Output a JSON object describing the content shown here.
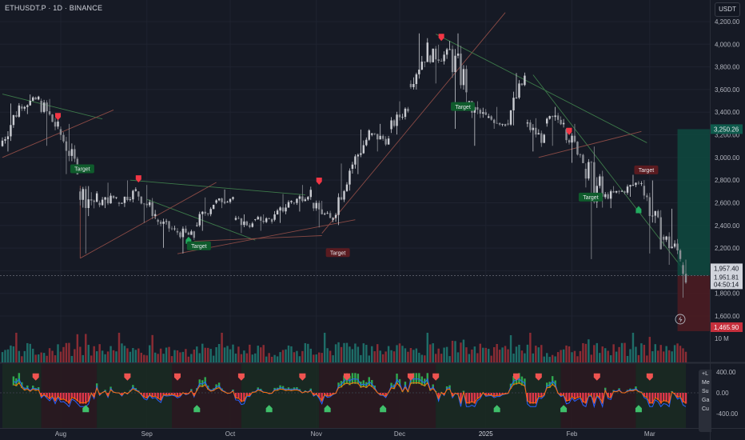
{
  "header": {
    "symbol": "ETHUSDT.P · 1D · BINANCE",
    "currency_button": "USDT"
  },
  "colors": {
    "background": "#161a25",
    "up_candle": "#c9cbd1",
    "down_candle": "#8a8d94",
    "bull_green": "#089981",
    "bear_red": "#f23645",
    "target_red": "#5a1b20",
    "target_green": "#0f5b2c",
    "trendline_green": "#3d7a4a",
    "trendline_red": "#8a4a45",
    "position_profit": "#0e4a40",
    "position_loss": "#4a1c22"
  },
  "price_axis": {
    "labels": [
      "4,200.00",
      "4,000.00",
      "3,800.00",
      "3,600.00",
      "3,400.00",
      "3,200.00",
      "3,000.00",
      "2,800.00",
      "2,600.00",
      "2,400.00",
      "2,200.00",
      "2,000.00",
      "1,800.00",
      "1,600.00"
    ],
    "target_price_tag": "3,250.26",
    "entry_price_tag": "1,957.40",
    "last_price_tag": "1,951.81",
    "countdown_tag": "04:50:14",
    "stop_price_tag": "1,465.90"
  },
  "volume_axis": {
    "label": "10 M"
  },
  "oscillator_axis": {
    "labels": [
      "400.00",
      "0.00",
      "-400.00"
    ]
  },
  "time_axis": {
    "labels": [
      "Aug",
      "Sep",
      "Oct",
      "Nov",
      "Dec",
      "2025",
      "Feb",
      "Mar"
    ]
  },
  "target_labels": [
    "Target",
    "Target",
    "Target",
    "Target",
    "Target",
    "Target"
  ],
  "side_panel": [
    "+L",
    "Me",
    "Su",
    "Ga",
    "Cu"
  ],
  "chart_data": {
    "type": "candlestick",
    "title": "ETHUSDT.P · 1D · BINANCE",
    "x_range": [
      "2024-07-11",
      "2025-03-14"
    ],
    "ylim": [
      1465.9,
      4280
    ],
    "last_price": 1951.81,
    "series": [
      {
        "name": "ETHUSDT.P",
        "ohlc_weekly": [
          {
            "date": "2024-07-11",
            "open": 3100,
            "close": 3450,
            "high": 3480,
            "low": 3050
          },
          {
            "date": "2024-07-18",
            "open": 3450,
            "close": 3520,
            "high": 3560,
            "low": 3380
          },
          {
            "date": "2024-07-25",
            "open": 3500,
            "close": 3250,
            "high": 3520,
            "low": 3100
          },
          {
            "date": "2024-08-01",
            "open": 3250,
            "close": 2900,
            "high": 3300,
            "low": 2850
          },
          {
            "date": "2024-08-08",
            "open": 2700,
            "close": 2600,
            "high": 2750,
            "low": 2150
          },
          {
            "date": "2024-08-15",
            "open": 2600,
            "close": 2650,
            "high": 2780,
            "low": 2550
          },
          {
            "date": "2024-08-22",
            "open": 2600,
            "close": 2700,
            "high": 2800,
            "low": 2560
          },
          {
            "date": "2024-08-29",
            "open": 2700,
            "close": 2500,
            "high": 2760,
            "low": 2420
          },
          {
            "date": "2024-09-05",
            "open": 2450,
            "close": 2350,
            "high": 2460,
            "low": 2200
          },
          {
            "date": "2024-09-12",
            "open": 2350,
            "close": 2300,
            "high": 2400,
            "low": 2150
          },
          {
            "date": "2024-09-19",
            "open": 2400,
            "close": 2600,
            "high": 2650,
            "low": 2350
          },
          {
            "date": "2024-09-26",
            "open": 2600,
            "close": 2650,
            "high": 2720,
            "low": 2550
          },
          {
            "date": "2024-10-03",
            "open": 2450,
            "close": 2400,
            "high": 2500,
            "low": 2330
          },
          {
            "date": "2024-10-10",
            "open": 2450,
            "close": 2450,
            "high": 2500,
            "low": 2350
          },
          {
            "date": "2024-10-17",
            "open": 2450,
            "close": 2620,
            "high": 2680,
            "low": 2420
          },
          {
            "date": "2024-10-24",
            "open": 2600,
            "close": 2700,
            "high": 2760,
            "low": 2520
          },
          {
            "date": "2024-10-31",
            "open": 2600,
            "close": 2450,
            "high": 2620,
            "low": 2380
          },
          {
            "date": "2024-11-07",
            "open": 2450,
            "close": 2900,
            "high": 2950,
            "low": 2400
          },
          {
            "date": "2024-11-14",
            "open": 2900,
            "close": 3200,
            "high": 3250,
            "low": 2850
          },
          {
            "date": "2024-11-21",
            "open": 3200,
            "close": 3150,
            "high": 3300,
            "low": 3050
          },
          {
            "date": "2024-11-28",
            "open": 3250,
            "close": 3450,
            "high": 3500,
            "low": 3200
          },
          {
            "date": "2024-12-05",
            "open": 3650,
            "close": 3950,
            "high": 4100,
            "low": 3600
          },
          {
            "date": "2024-12-12",
            "open": 3900,
            "close": 3900,
            "high": 4000,
            "low": 3650
          },
          {
            "date": "2024-12-19",
            "open": 3950,
            "close": 3650,
            "high": 4100,
            "low": 3250
          },
          {
            "date": "2024-12-26",
            "open": 3450,
            "close": 3350,
            "high": 3500,
            "low": 3100
          },
          {
            "date": "2025-01-02",
            "open": 3350,
            "close": 3300,
            "high": 3450,
            "low": 3250
          },
          {
            "date": "2025-01-09",
            "open": 3300,
            "close": 3700,
            "high": 3750,
            "low": 3280
          },
          {
            "date": "2025-01-16",
            "open": 3300,
            "close": 3150,
            "high": 3350,
            "low": 3050
          },
          {
            "date": "2025-01-23",
            "open": 3300,
            "close": 3350,
            "high": 3450,
            "low": 3100
          },
          {
            "date": "2025-01-30",
            "open": 3250,
            "close": 3000,
            "high": 3300,
            "low": 2950
          },
          {
            "date": "2025-02-06",
            "open": 2900,
            "close": 2650,
            "high": 3100,
            "low": 2100
          },
          {
            "date": "2025-02-13",
            "open": 2650,
            "close": 2700,
            "high": 2750,
            "low": 2550
          },
          {
            "date": "2025-02-20",
            "open": 2700,
            "close": 2800,
            "high": 2850,
            "low": 2650
          },
          {
            "date": "2025-02-27",
            "open": 2750,
            "close": 2300,
            "high": 2800,
            "low": 2150
          },
          {
            "date": "2025-03-06",
            "open": 2300,
            "close": 2150,
            "high": 2550,
            "low": 2050
          },
          {
            "date": "2025-03-13",
            "open": 2050,
            "close": 1951.81,
            "high": 2100,
            "low": 1760
          }
        ]
      }
    ],
    "signals": [
      {
        "type": "sell",
        "date": "2024-07-31",
        "price": 3350
      },
      {
        "type": "sell",
        "date": "2024-08-29",
        "price": 2800
      },
      {
        "type": "buy",
        "date": "2024-09-16",
        "price": 2280
      },
      {
        "type": "sell",
        "date": "2024-11-02",
        "price": 2780
      },
      {
        "type": "sell",
        "date": "2024-12-16",
        "price": 4050
      },
      {
        "type": "sell",
        "date": "2025-01-31",
        "price": 3220
      },
      {
        "type": "buy",
        "date": "2025-02-25",
        "price": 2550
      }
    ],
    "targets": [
      {
        "label": "Target",
        "date": "2024-08-05",
        "price": 2900,
        "side": "buy"
      },
      {
        "label": "Target",
        "date": "2024-09-16",
        "price": 2220,
        "side": "buy"
      },
      {
        "label": "Target",
        "date": "2024-11-05",
        "price": 2160,
        "side": "sell"
      },
      {
        "label": "Target",
        "date": "2024-12-20",
        "price": 3450,
        "side": "buy"
      },
      {
        "label": "Target",
        "date": "2025-02-04",
        "price": 2650,
        "side": "buy"
      },
      {
        "label": "Target",
        "date": "2025-02-24",
        "price": 2890,
        "side": "sell"
      }
    ],
    "position": {
      "entry": 1957.4,
      "target": 3250.26,
      "stop": 1465.9
    },
    "volume": {
      "ylabel": "10 M"
    },
    "oscillator": {
      "ylim": [
        -400,
        400
      ]
    }
  }
}
